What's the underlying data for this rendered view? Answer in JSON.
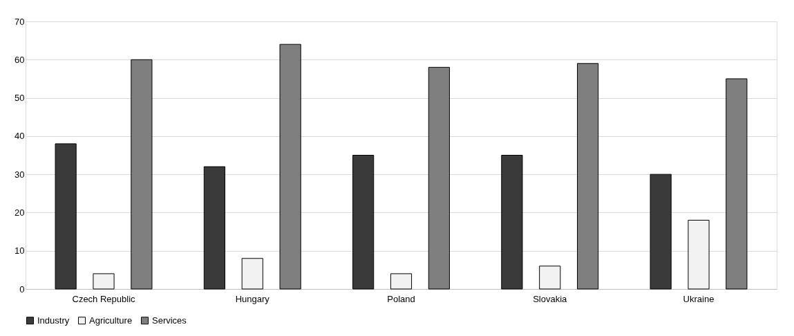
{
  "chart_data": {
    "type": "bar",
    "categories": [
      "Czech Republic",
      "Hungary",
      "Poland",
      "Slovakia",
      "Ukraine"
    ],
    "series": [
      {
        "name": "Industry",
        "color": "#3a3a3a",
        "values": [
          38,
          32,
          35,
          35,
          30
        ]
      },
      {
        "name": "Agriculture",
        "color": "#f2f2f2",
        "values": [
          4,
          8,
          4,
          6,
          18
        ]
      },
      {
        "name": "Services",
        "color": "#7f7f7f",
        "values": [
          60,
          64,
          58,
          59,
          55
        ]
      }
    ],
    "ylim": [
      0,
      70
    ],
    "yticks": [
      0,
      10,
      20,
      30,
      40,
      50,
      60,
      70
    ],
    "grid": "y",
    "legend": "bottom"
  }
}
